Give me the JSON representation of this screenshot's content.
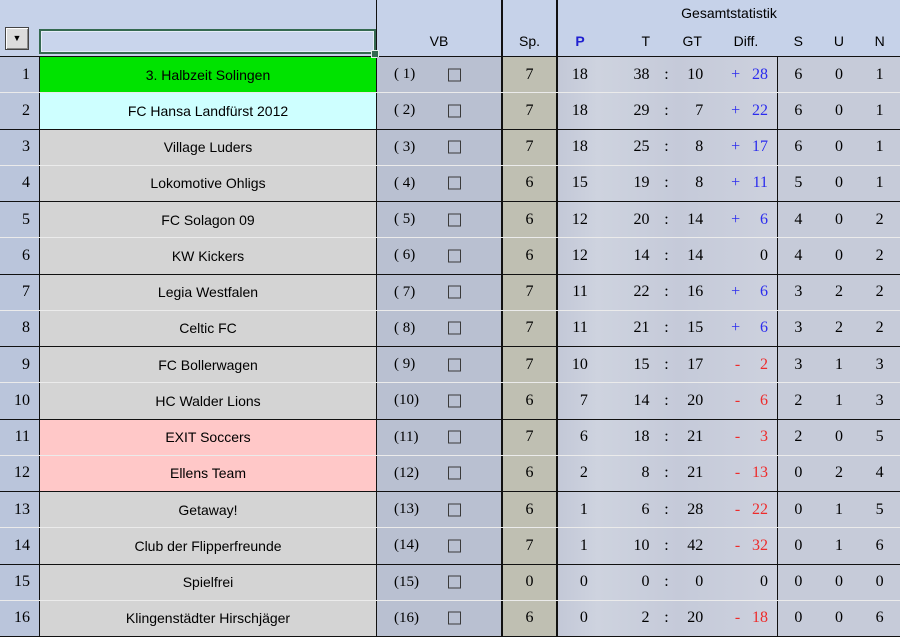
{
  "palette": {
    "header_bg": "#c6d2e9",
    "green_row": "#00e300",
    "cyan_row": "#ceffff",
    "pink_row": "#ffc8c8",
    "diff_positive": "#2b2bee",
    "diff_negative": "#ee2b2b",
    "p_header_blue": "#1f1fd0",
    "selection_border_green": "#346950"
  },
  "header": {
    "group_label": "Gesamtstatistik",
    "vb": "VB",
    "sp": "Sp.",
    "p": "P",
    "t": "T",
    "gt": "GT",
    "diff": "Diff.",
    "s": "S",
    "u": "U",
    "n": "N",
    "filter_value": "",
    "dropdown_glyph": "▼",
    "goals_separator": ":"
  },
  "rows": [
    {
      "pos": "1",
      "name": "3. Halbzeit Solingen",
      "rank": "( 1)",
      "sp": "7",
      "p": "18",
      "t": "38",
      "gt": "10",
      "diff_sign": "+",
      "diff_value": "28",
      "s": "6",
      "u": "0",
      "n": "1",
      "highlight": "green"
    },
    {
      "pos": "2",
      "name": "FC Hansa Landfürst 2012",
      "rank": "( 2)",
      "sp": "7",
      "p": "18",
      "t": "29",
      "gt": "7",
      "diff_sign": "+",
      "diff_value": "22",
      "s": "6",
      "u": "0",
      "n": "1",
      "highlight": "cyan"
    },
    {
      "pos": "3",
      "name": "Village Luders",
      "rank": "( 3)",
      "sp": "7",
      "p": "18",
      "t": "25",
      "gt": "8",
      "diff_sign": "+",
      "diff_value": "17",
      "s": "6",
      "u": "0",
      "n": "1",
      "highlight": null
    },
    {
      "pos": "4",
      "name": "Lokomotive Ohligs",
      "rank": "( 4)",
      "sp": "6",
      "p": "15",
      "t": "19",
      "gt": "8",
      "diff_sign": "+",
      "diff_value": "11",
      "s": "5",
      "u": "0",
      "n": "1",
      "highlight": null
    },
    {
      "pos": "5",
      "name": "FC Solagon 09",
      "rank": "( 5)",
      "sp": "6",
      "p": "12",
      "t": "20",
      "gt": "14",
      "diff_sign": "+",
      "diff_value": "6",
      "s": "4",
      "u": "0",
      "n": "2",
      "highlight": null
    },
    {
      "pos": "6",
      "name": "KW Kickers",
      "rank": "( 6)",
      "sp": "6",
      "p": "12",
      "t": "14",
      "gt": "14",
      "diff_sign": "",
      "diff_value": "0",
      "s": "4",
      "u": "0",
      "n": "2",
      "highlight": null
    },
    {
      "pos": "7",
      "name": "Legia Westfalen",
      "rank": "( 7)",
      "sp": "7",
      "p": "11",
      "t": "22",
      "gt": "16",
      "diff_sign": "+",
      "diff_value": "6",
      "s": "3",
      "u": "2",
      "n": "2",
      "highlight": null
    },
    {
      "pos": "8",
      "name": "Celtic FC",
      "rank": "( 8)",
      "sp": "7",
      "p": "11",
      "t": "21",
      "gt": "15",
      "diff_sign": "+",
      "diff_value": "6",
      "s": "3",
      "u": "2",
      "n": "2",
      "highlight": null
    },
    {
      "pos": "9",
      "name": "FC Bollerwagen",
      "rank": "( 9)",
      "sp": "7",
      "p": "10",
      "t": "15",
      "gt": "17",
      "diff_sign": "-",
      "diff_value": "2",
      "s": "3",
      "u": "1",
      "n": "3",
      "highlight": null
    },
    {
      "pos": "10",
      "name": "HC Walder Lions",
      "rank": "(10)",
      "sp": "6",
      "p": "7",
      "t": "14",
      "gt": "20",
      "diff_sign": "-",
      "diff_value": "6",
      "s": "2",
      "u": "1",
      "n": "3",
      "highlight": null
    },
    {
      "pos": "11",
      "name": "EXIT Soccers",
      "rank": "(11)",
      "sp": "7",
      "p": "6",
      "t": "18",
      "gt": "21",
      "diff_sign": "-",
      "diff_value": "3",
      "s": "2",
      "u": "0",
      "n": "5",
      "highlight": "pink"
    },
    {
      "pos": "12",
      "name": "Ellens Team",
      "rank": "(12)",
      "sp": "6",
      "p": "2",
      "t": "8",
      "gt": "21",
      "diff_sign": "-",
      "diff_value": "13",
      "s": "0",
      "u": "2",
      "n": "4",
      "highlight": "pink"
    },
    {
      "pos": "13",
      "name": "Getaway!",
      "rank": "(13)",
      "sp": "6",
      "p": "1",
      "t": "6",
      "gt": "28",
      "diff_sign": "-",
      "diff_value": "22",
      "s": "0",
      "u": "1",
      "n": "5",
      "highlight": null
    },
    {
      "pos": "14",
      "name": "Club der Flipperfreunde",
      "rank": "(14)",
      "sp": "7",
      "p": "1",
      "t": "10",
      "gt": "42",
      "diff_sign": "-",
      "diff_value": "32",
      "s": "0",
      "u": "1",
      "n": "6",
      "highlight": null
    },
    {
      "pos": "15",
      "name": "Spielfrei",
      "rank": "(15)",
      "sp": "0",
      "p": "0",
      "t": "0",
      "gt": "0",
      "diff_sign": "",
      "diff_value": "0",
      "s": "0",
      "u": "0",
      "n": "0",
      "highlight": null
    },
    {
      "pos": "16",
      "name": "Klingenstädter Hirschjäger",
      "rank": "(16)",
      "sp": "6",
      "p": "0",
      "t": "2",
      "gt": "20",
      "diff_sign": "-",
      "diff_value": "18",
      "s": "0",
      "u": "0",
      "n": "6",
      "highlight": null
    }
  ]
}
